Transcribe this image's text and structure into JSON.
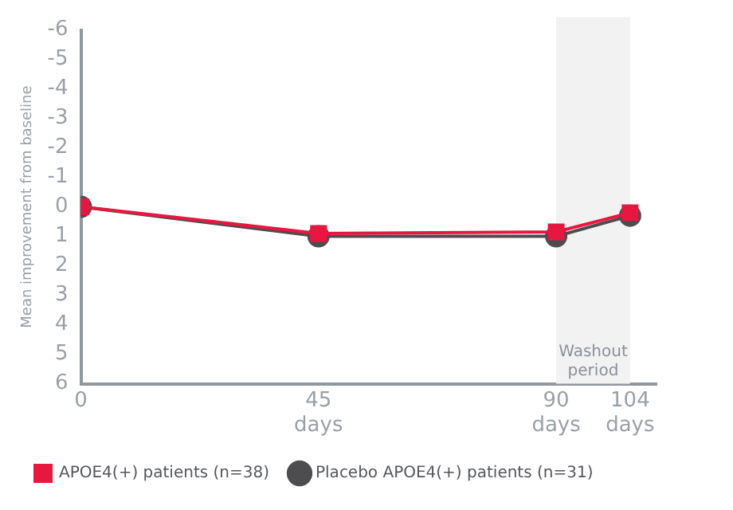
{
  "chart_data": {
    "type": "line",
    "ylabel": "Mean improvement from baseline",
    "x": [
      0,
      45,
      90,
      104
    ],
    "series": [
      {
        "name": "APOE4(+) patients (n=38)",
        "color": "#e8173f",
        "marker": "square",
        "values": [
          0,
          0.9,
          0.85,
          0.2
        ]
      },
      {
        "name": "Placebo APOE4(+) patients (n=31)",
        "color": "#4d4d4f",
        "marker": "circle",
        "values": [
          0,
          1.0,
          1.0,
          0.3
        ]
      }
    ],
    "xlim": [
      0,
      109
    ],
    "xticks": [
      0,
      {
        "value": 45,
        "label": "45 days"
      },
      {
        "value": 90,
        "label": "90 days"
      },
      {
        "value": 104,
        "label": "104 days"
      }
    ],
    "ylim": [
      6,
      -6
    ],
    "yticks": [
      -6,
      -5,
      -4,
      -3,
      -2,
      -1,
      0,
      1,
      2,
      3,
      4,
      5,
      6
    ],
    "bands": [
      {
        "axis": "x",
        "from": 90,
        "to": 104,
        "label": "Washout period",
        "color": "#f2f2f2"
      }
    ],
    "grid": false,
    "legend": "bottom"
  }
}
